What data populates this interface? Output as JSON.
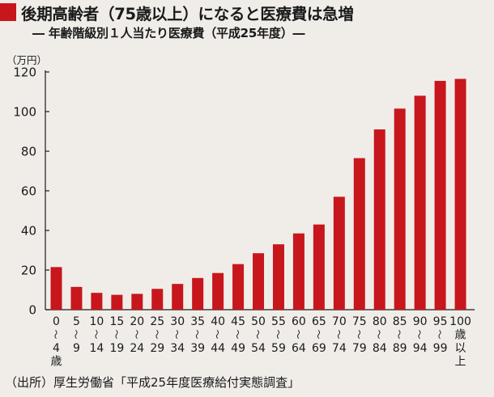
{
  "title": "後期高齢者（75歳以上）になると医療費は急増",
  "subtitle": "― 年齢階級別１人当たり医療費（平成25年度）―",
  "source": "（出所）厚生労働省「平成25年度医療給付実態調査」",
  "colors": {
    "bar": "#c8161d",
    "background": "#f0ede9",
    "marker": "#c8161d"
  },
  "chart_data": {
    "type": "bar",
    "ylabel": "（万円）",
    "xlabel": "",
    "ylim": [
      0,
      120
    ],
    "yticks": [
      0,
      20,
      40,
      60,
      80,
      100,
      120
    ],
    "grid": false,
    "categories": [
      "0〜4歳",
      "5〜9",
      "10〜14",
      "15〜19",
      "20〜24",
      "25〜29",
      "30〜34",
      "35〜39",
      "40〜44",
      "45〜49",
      "50〜54",
      "55〜59",
      "60〜64",
      "65〜69",
      "70〜74",
      "75〜79",
      "80〜84",
      "85〜89",
      "90〜94",
      "95〜99",
      "100歳以上"
    ],
    "category_lines": [
      [
        "0",
        "〜",
        "4",
        "歳"
      ],
      [
        "5",
        "〜",
        "9"
      ],
      [
        "10",
        "〜",
        "14"
      ],
      [
        "15",
        "〜",
        "19"
      ],
      [
        "20",
        "〜",
        "24"
      ],
      [
        "25",
        "〜",
        "29"
      ],
      [
        "30",
        "〜",
        "34"
      ],
      [
        "35",
        "〜",
        "39"
      ],
      [
        "40",
        "〜",
        "44"
      ],
      [
        "45",
        "〜",
        "49"
      ],
      [
        "50",
        "〜",
        "54"
      ],
      [
        "55",
        "〜",
        "59"
      ],
      [
        "60",
        "〜",
        "64"
      ],
      [
        "65",
        "〜",
        "69"
      ],
      [
        "70",
        "〜",
        "74"
      ],
      [
        "75",
        "〜",
        "79"
      ],
      [
        "80",
        "〜",
        "84"
      ],
      [
        "85",
        "〜",
        "89"
      ],
      [
        "90",
        "〜",
        "94"
      ],
      [
        "95",
        "〜",
        "99"
      ],
      [
        "100",
        "歳",
        "以",
        "上"
      ]
    ],
    "values": [
      21.5,
      11.5,
      8.5,
      7.5,
      8,
      10.5,
      13,
      16,
      18.5,
      23,
      28.5,
      33,
      38.5,
      43,
      57,
      76.5,
      91,
      101.5,
      108,
      115.5,
      116.5
    ]
  }
}
